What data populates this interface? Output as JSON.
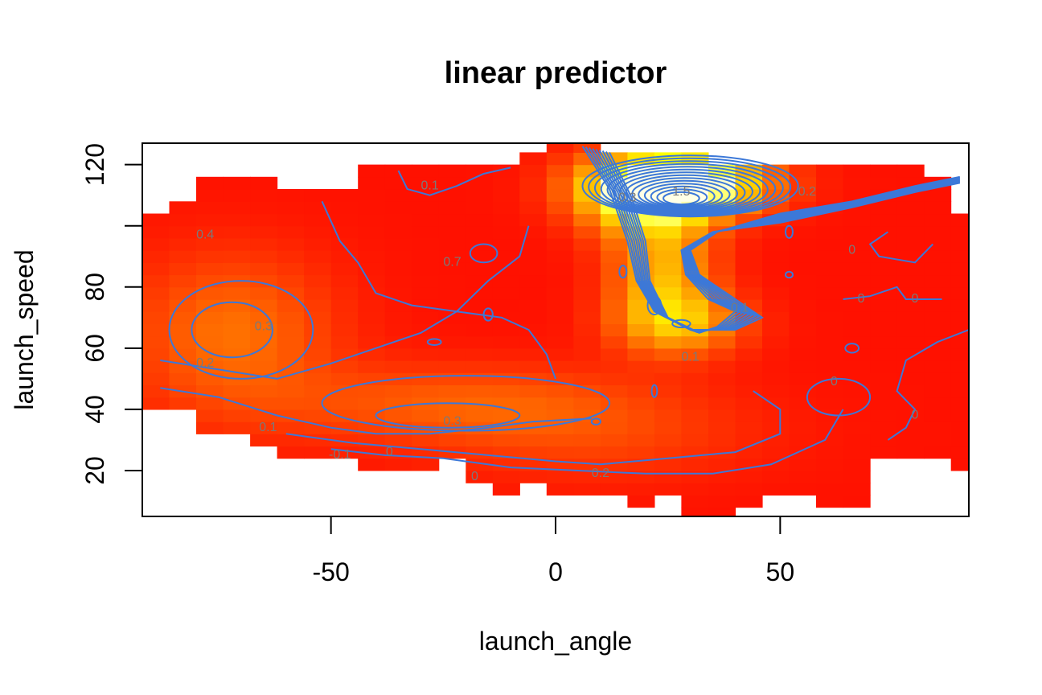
{
  "chart_data": {
    "type": "heatmap",
    "title": "linear predictor",
    "xlabel": "launch_angle",
    "ylabel": "launch_speed",
    "xlim": [
      -92,
      92
    ],
    "ylim": [
      5,
      127
    ],
    "x_ticks": [
      -50,
      0,
      50
    ],
    "y_ticks": [
      20,
      40,
      60,
      80,
      100,
      120
    ],
    "y_tick_labels": [
      "20",
      "40",
      "60",
      "80",
      "",
      "120"
    ],
    "colors": {
      "low": "#FF0000",
      "mid": "#FF8000",
      "high": "#FFFF00",
      "peak": "#FFFFE0",
      "contour": "#3C78D8",
      "contour_label": "#7A7A7A"
    },
    "contour_labels": [
      {
        "text": "0.1",
        "x": -28,
        "y": 113
      },
      {
        "text": "0.4",
        "x": -78,
        "y": 97
      },
      {
        "text": "0.7",
        "x": -23,
        "y": 88
      },
      {
        "text": "0.3",
        "x": -65,
        "y": 67
      },
      {
        "text": "0.2",
        "x": -78,
        "y": 55
      },
      {
        "text": "0.1",
        "x": -64,
        "y": 34
      },
      {
        "text": "-0.1",
        "x": -48,
        "y": 25
      },
      {
        "text": "0",
        "x": -37,
        "y": 26
      },
      {
        "text": "0.3",
        "x": -23,
        "y": 36
      },
      {
        "text": "0",
        "x": -18,
        "y": 18
      },
      {
        "text": "0.2",
        "x": 10,
        "y": 19
      },
      {
        "text": "0.3",
        "x": 16,
        "y": 109
      },
      {
        "text": "1.5",
        "x": 28,
        "y": 111
      },
      {
        "text": "0.2",
        "x": 56,
        "y": 111
      },
      {
        "text": "0.1",
        "x": 41,
        "y": 73
      },
      {
        "text": "0.1",
        "x": 30,
        "y": 57
      },
      {
        "text": "0",
        "x": 66,
        "y": 92
      },
      {
        "text": "0",
        "x": 68,
        "y": 76
      },
      {
        "text": "0",
        "x": 80,
        "y": 76
      },
      {
        "text": "0",
        "x": 62,
        "y": 49
      },
      {
        "text": "0",
        "x": 80,
        "y": 38
      }
    ]
  }
}
